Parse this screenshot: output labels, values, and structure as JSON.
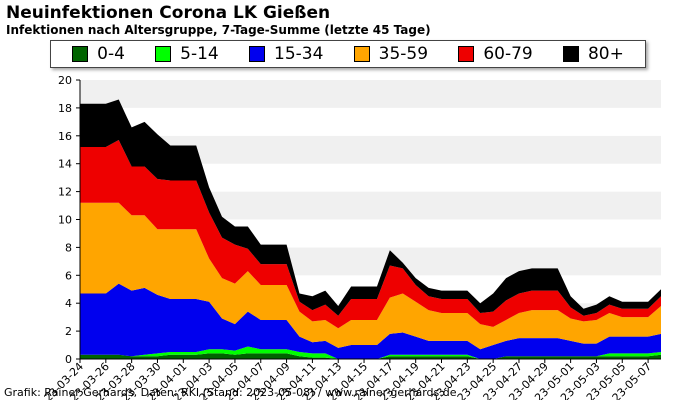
{
  "chart_data": {
    "type": "area",
    "title": "Neuinfektionen Corona LK Gießen",
    "subtitle": "Infektionen nach Altersgruppe, 7-Tage-Summe (letzte 45 Tage)",
    "ylim": [
      0,
      20
    ],
    "yticks": [
      0,
      2,
      4,
      6,
      8,
      10,
      12,
      14,
      16,
      18,
      20
    ],
    "grid": "horizontal alternating bands",
    "legend_placement": "top",
    "stacked": true,
    "x": [
      "23-03-24",
      "23-03-25",
      "23-03-26",
      "23-03-27",
      "23-03-28",
      "23-03-29",
      "23-03-30",
      "23-03-31",
      "23-04-01",
      "23-04-02",
      "23-04-03",
      "23-04-04",
      "23-04-05",
      "23-04-06",
      "23-04-07",
      "23-04-08",
      "23-04-09",
      "23-04-10",
      "23-04-11",
      "23-04-12",
      "23-04-13",
      "23-04-14",
      "23-04-15",
      "23-04-16",
      "23-04-17",
      "23-04-18",
      "23-04-19",
      "23-04-20",
      "23-04-21",
      "23-04-22",
      "23-04-23",
      "23-04-24",
      "23-04-25",
      "23-04-26",
      "23-04-27",
      "23-04-28",
      "23-04-29",
      "23-04-30",
      "23-05-01",
      "23-05-02",
      "23-05-03",
      "23-05-04",
      "23-05-05",
      "23-05-06",
      "23-05-07",
      "23-05-08"
    ],
    "xtick_labels": [
      "23-03-24",
      "23-03-26",
      "23-03-28",
      "23-03-30",
      "23-04-01",
      "23-04-03",
      "23-04-05",
      "23-04-07",
      "23-04-09",
      "23-04-11",
      "23-04-13",
      "23-04-15",
      "23-04-17",
      "23-04-19",
      "23-04-21",
      "23-04-23",
      "23-04-25",
      "23-04-27",
      "23-04-29",
      "23-05-01",
      "23-05-03",
      "23-05-05",
      "23-05-07"
    ],
    "series": [
      {
        "name": "0-4",
        "color": "#006400",
        "values": [
          0.3,
          0.3,
          0.3,
          0.3,
          0.2,
          0.2,
          0.2,
          0.3,
          0.3,
          0.3,
          0.4,
          0.4,
          0.3,
          0.4,
          0.4,
          0.4,
          0.4,
          0.2,
          0.1,
          0.1,
          0,
          0,
          0,
          0,
          0.2,
          0.2,
          0.2,
          0.2,
          0.2,
          0.2,
          0.2,
          0,
          0,
          0.2,
          0.2,
          0.2,
          0.2,
          0.2,
          0.2,
          0.2,
          0.2,
          0.2,
          0.2,
          0.2,
          0.2,
          0.3
        ]
      },
      {
        "name": "5-14",
        "color": "#00ff00",
        "values": [
          0,
          0,
          0,
          0,
          0,
          0.1,
          0.2,
          0.2,
          0.2,
          0.2,
          0.3,
          0.3,
          0.3,
          0.5,
          0.3,
          0.3,
          0.3,
          0.3,
          0.3,
          0.3,
          0,
          0,
          0,
          0,
          0.1,
          0.1,
          0.1,
          0.1,
          0.1,
          0.1,
          0.1,
          0,
          0,
          0,
          0,
          0,
          0,
          0,
          0,
          0,
          0,
          0.2,
          0.2,
          0.2,
          0.2,
          0.2
        ]
      },
      {
        "name": "15-34",
        "color": "#0000ee",
        "values": [
          4.4,
          4.4,
          4.4,
          5.1,
          4.7,
          4.8,
          4.2,
          3.8,
          3.8,
          3.8,
          3.4,
          2.2,
          1.9,
          2.5,
          2.1,
          2.1,
          2.1,
          1.1,
          0.8,
          0.9,
          0.8,
          1,
          1,
          1,
          1.5,
          1.6,
          1.3,
          1.0,
          1.0,
          1.0,
          1.0,
          0.7,
          1.0,
          1.1,
          1.3,
          1.3,
          1.3,
          1.3,
          1.1,
          0.9,
          0.9,
          1.2,
          1.2,
          1.2,
          1.2,
          1.3
        ]
      },
      {
        "name": "35-59",
        "color": "#ffa500",
        "values": [
          6.5,
          6.5,
          6.5,
          5.8,
          5.4,
          5.2,
          4.7,
          5.0,
          5.0,
          5.0,
          3.1,
          2.9,
          2.9,
          2.9,
          2.5,
          2.5,
          2.5,
          1.8,
          1.5,
          1.5,
          1.4,
          1.8,
          1.8,
          1.8,
          2.6,
          2.8,
          2.5,
          2.2,
          2.0,
          2.0,
          2.0,
          1.8,
          1.3,
          1.5,
          1.8,
          2.0,
          2.0,
          2.0,
          1.6,
          1.6,
          1.7,
          1.7,
          1.4,
          1.4,
          1.4,
          2.0
        ]
      },
      {
        "name": "60-79",
        "color": "#ee0000",
        "values": [
          4,
          4,
          4,
          4.5,
          3.5,
          3.5,
          3.6,
          3.5,
          3.5,
          3.5,
          3.3,
          2.9,
          2.8,
          1.6,
          1.5,
          1.5,
          1.5,
          0.7,
          0.8,
          1.1,
          0.9,
          1.5,
          1.5,
          1.5,
          2.3,
          1.8,
          1.2,
          1.0,
          1.0,
          1.0,
          1.0,
          0.8,
          1.1,
          1.4,
          1.4,
          1.4,
          1.4,
          1.4,
          0.8,
          0.4,
          0.5,
          0.6,
          0.6,
          0.6,
          0.6,
          0.7
        ]
      },
      {
        "name": "80+",
        "color": "#000000",
        "values": [
          3.1,
          3.1,
          3.1,
          2.9,
          2.8,
          3.2,
          3.2,
          2.5,
          2.5,
          2.5,
          1.8,
          1.5,
          1.3,
          1.6,
          1.4,
          1.4,
          1.4,
          0.6,
          1.0,
          1.0,
          0.7,
          0.9,
          0.9,
          0.9,
          1.1,
          0.4,
          0.5,
          0.6,
          0.6,
          0.6,
          0.6,
          0.7,
          1.3,
          1.6,
          1.6,
          1.6,
          1.6,
          1.6,
          0.8,
          0.5,
          0.6,
          0.6,
          0.5,
          0.5,
          0.5,
          0.5
        ]
      }
    ],
    "footer": "Grafik: Rainer Gerhards, Daten: RKI (Stand: 2023-05-08) / www.rainer-gerhards.de"
  }
}
